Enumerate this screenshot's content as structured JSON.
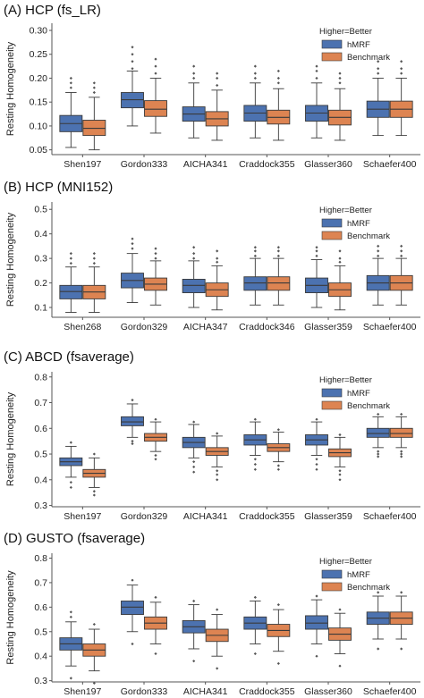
{
  "colors": {
    "hMRF": "#4c72b0",
    "Benchmark": "#dd8452",
    "whisker": "#3a3a3a",
    "axis": "#555555"
  },
  "chart_data": [
    {
      "type": "box",
      "title": "(A) HCP (fs_LR)",
      "ylabel": "Resting Homogeneity",
      "ylim": [
        0.04,
        0.315
      ],
      "yticks": [
        "0.05",
        "0.10",
        "0.15",
        "0.20",
        "0.25",
        "0.30"
      ],
      "legend": {
        "title": "Higher=Better",
        "items": [
          "hMRF",
          "Benchmark"
        ],
        "placement": "top-right"
      },
      "categories": [
        "Shen197",
        "Gordon333",
        "AICHA341",
        "Craddock355",
        "Glasser360",
        "Schaefer400"
      ],
      "series": [
        {
          "name": "hMRF",
          "boxes": [
            {
              "min": 0.055,
              "q1": 0.088,
              "median": 0.105,
              "q3": 0.122,
              "max": 0.17,
              "outliers": [
                0.18,
                0.19,
                0.2
              ]
            },
            {
              "min": 0.1,
              "q1": 0.138,
              "median": 0.155,
              "q3": 0.17,
              "max": 0.215,
              "outliers": [
                0.22,
                0.235,
                0.25,
                0.265
              ]
            },
            {
              "min": 0.075,
              "q1": 0.11,
              "median": 0.125,
              "q3": 0.14,
              "max": 0.19,
              "outliers": [
                0.2,
                0.21,
                0.225
              ]
            },
            {
              "min": 0.075,
              "q1": 0.11,
              "median": 0.127,
              "q3": 0.143,
              "max": 0.19,
              "outliers": [
                0.2,
                0.21,
                0.225
              ]
            },
            {
              "min": 0.075,
              "q1": 0.11,
              "median": 0.127,
              "q3": 0.143,
              "max": 0.19,
              "outliers": [
                0.2,
                0.215,
                0.225
              ]
            },
            {
              "min": 0.08,
              "q1": 0.118,
              "median": 0.135,
              "q3": 0.152,
              "max": 0.2,
              "outliers": [
                0.21,
                0.22,
                0.235
              ]
            }
          ]
        },
        {
          "name": "Benchmark",
          "boxes": [
            {
              "min": 0.05,
              "q1": 0.08,
              "median": 0.095,
              "q3": 0.112,
              "max": 0.16,
              "outliers": [
                0.17,
                0.18,
                0.19
              ]
            },
            {
              "min": 0.085,
              "q1": 0.12,
              "median": 0.135,
              "q3": 0.153,
              "max": 0.2,
              "outliers": [
                0.21,
                0.225,
                0.24
              ]
            },
            {
              "min": 0.07,
              "q1": 0.1,
              "median": 0.115,
              "q3": 0.13,
              "max": 0.175,
              "outliers": [
                0.185,
                0.2,
                0.21
              ]
            },
            {
              "min": 0.07,
              "q1": 0.104,
              "median": 0.118,
              "q3": 0.133,
              "max": 0.178,
              "outliers": [
                0.19,
                0.2,
                0.215
              ]
            },
            {
              "min": 0.07,
              "q1": 0.102,
              "median": 0.118,
              "q3": 0.133,
              "max": 0.178,
              "outliers": [
                0.19,
                0.2,
                0.21
              ]
            },
            {
              "min": 0.08,
              "q1": 0.118,
              "median": 0.135,
              "q3": 0.152,
              "max": 0.2,
              "outliers": [
                0.21,
                0.22,
                0.235
              ]
            }
          ]
        }
      ]
    },
    {
      "type": "box",
      "title": "(B) HCP (MNI152)",
      "ylabel": "Resting Homogeneity",
      "ylim": [
        0.06,
        0.53
      ],
      "yticks": [
        "0.1",
        "0.2",
        "0.3",
        "0.4",
        "0.5"
      ],
      "legend": {
        "title": "Higher=Better",
        "items": [
          "hMRF",
          "Benchmark"
        ],
        "placement": "top-right"
      },
      "categories": [
        "Shen268",
        "Gordon329",
        "AICHA347",
        "Craddock346",
        "Glasser359",
        "Schaefer400"
      ],
      "series": [
        {
          "name": "hMRF",
          "boxes": [
            {
              "min": 0.08,
              "q1": 0.135,
              "median": 0.165,
              "q3": 0.19,
              "max": 0.265,
              "outliers": [
                0.28,
                0.3,
                0.32
              ]
            },
            {
              "min": 0.12,
              "q1": 0.18,
              "median": 0.21,
              "q3": 0.24,
              "max": 0.32,
              "outliers": [
                0.34,
                0.36,
                0.38
              ]
            },
            {
              "min": 0.1,
              "q1": 0.16,
              "median": 0.19,
              "q3": 0.215,
              "max": 0.29,
              "outliers": [
                0.3,
                0.32,
                0.345
              ]
            },
            {
              "min": 0.11,
              "q1": 0.17,
              "median": 0.2,
              "q3": 0.225,
              "max": 0.3,
              "outliers": [
                0.31,
                0.33,
                0.345
              ]
            },
            {
              "min": 0.1,
              "q1": 0.16,
              "median": 0.19,
              "q3": 0.22,
              "max": 0.295,
              "outliers": [
                0.31,
                0.33,
                0.345
              ]
            },
            {
              "min": 0.11,
              "q1": 0.17,
              "median": 0.2,
              "q3": 0.23,
              "max": 0.3,
              "outliers": [
                0.31,
                0.33,
                0.35
              ]
            }
          ]
        },
        {
          "name": "Benchmark",
          "boxes": [
            {
              "min": 0.08,
              "q1": 0.135,
              "median": 0.163,
              "q3": 0.19,
              "max": 0.265,
              "outliers": [
                0.28,
                0.3,
                0.32
              ]
            },
            {
              "min": 0.11,
              "q1": 0.17,
              "median": 0.195,
              "q3": 0.22,
              "max": 0.29,
              "outliers": [
                0.3,
                0.32,
                0.34
              ]
            },
            {
              "min": 0.09,
              "q1": 0.145,
              "median": 0.172,
              "q3": 0.2,
              "max": 0.27,
              "outliers": [
                0.285,
                0.3,
                0.33
              ]
            },
            {
              "min": 0.11,
              "q1": 0.17,
              "median": 0.2,
              "q3": 0.225,
              "max": 0.3,
              "outliers": [
                0.31,
                0.33,
                0.345
              ]
            },
            {
              "min": 0.09,
              "q1": 0.145,
              "median": 0.172,
              "q3": 0.2,
              "max": 0.27,
              "outliers": [
                0.285,
                0.3,
                0.33
              ]
            },
            {
              "min": 0.11,
              "q1": 0.17,
              "median": 0.2,
              "q3": 0.23,
              "max": 0.3,
              "outliers": [
                0.31,
                0.33,
                0.35
              ]
            }
          ]
        }
      ]
    },
    {
      "type": "box",
      "title": "(C) ABCD (fsaverage)",
      "ylabel": "Resting Homogeneity",
      "ylim": [
        0.295,
        0.82
      ],
      "yticks": [
        "0.3",
        "0.4",
        "0.5",
        "0.6",
        "0.7",
        "0.8"
      ],
      "legend": {
        "title": "Higher=Better",
        "items": [
          "hMRF",
          "Benchmark"
        ],
        "placement": "top-right"
      },
      "categories": [
        "Shen197",
        "Gordon329",
        "AICHA341",
        "Craddock355",
        "Glasser359",
        "Schaefer400"
      ],
      "series": [
        {
          "name": "hMRF",
          "boxes": [
            {
              "min": 0.41,
              "q1": 0.455,
              "median": 0.47,
              "q3": 0.485,
              "max": 0.53,
              "outliers": [
                0.39,
                0.37,
                0.545
              ]
            },
            {
              "min": 0.565,
              "q1": 0.61,
              "median": 0.625,
              "q3": 0.645,
              "max": 0.695,
              "outliers": [
                0.55,
                0.54,
                0.71
              ]
            },
            {
              "min": 0.485,
              "q1": 0.525,
              "median": 0.545,
              "q3": 0.565,
              "max": 0.615,
              "outliers": [
                0.47,
                0.45,
                0.43,
                0.625
              ]
            },
            {
              "min": 0.495,
              "q1": 0.535,
              "median": 0.555,
              "q3": 0.575,
              "max": 0.625,
              "outliers": [
                0.48,
                0.46,
                0.44,
                0.635
              ]
            },
            {
              "min": 0.495,
              "q1": 0.535,
              "median": 0.555,
              "q3": 0.575,
              "max": 0.625,
              "outliers": [
                0.48,
                0.46,
                0.44,
                0.635
              ]
            },
            {
              "min": 0.525,
              "q1": 0.565,
              "median": 0.58,
              "q3": 0.6,
              "max": 0.645,
              "outliers": [
                0.51,
                0.5,
                0.49,
                0.655
              ]
            }
          ]
        },
        {
          "name": "Benchmark",
          "boxes": [
            {
              "min": 0.37,
              "q1": 0.41,
              "median": 0.425,
              "q3": 0.44,
              "max": 0.485,
              "outliers": [
                0.355,
                0.34,
                0.5
              ]
            },
            {
              "min": 0.51,
              "q1": 0.55,
              "median": 0.565,
              "q3": 0.58,
              "max": 0.625,
              "outliers": [
                0.495,
                0.48,
                0.635
              ]
            },
            {
              "min": 0.45,
              "q1": 0.495,
              "median": 0.51,
              "q3": 0.525,
              "max": 0.57,
              "outliers": [
                0.435,
                0.42,
                0.4,
                0.58
              ]
            },
            {
              "min": 0.47,
              "q1": 0.51,
              "median": 0.525,
              "q3": 0.54,
              "max": 0.585,
              "outliers": [
                0.455,
                0.44,
                0.595
              ]
            },
            {
              "min": 0.45,
              "q1": 0.49,
              "median": 0.505,
              "q3": 0.52,
              "max": 0.565,
              "outliers": [
                0.435,
                0.42,
                0.4,
                0.575
              ]
            },
            {
              "min": 0.525,
              "q1": 0.565,
              "median": 0.58,
              "q3": 0.6,
              "max": 0.645,
              "outliers": [
                0.51,
                0.5,
                0.49,
                0.655
              ]
            }
          ]
        }
      ]
    },
    {
      "type": "box",
      "title": "(D) GUSTO (fsaverage)",
      "ylabel": "Resting Homogeneity",
      "ylim": [
        0.295,
        0.82
      ],
      "yticks": [
        "0.3",
        "0.4",
        "0.5",
        "0.6",
        "0.7",
        "0.8"
      ],
      "legend": {
        "title": "Higher=Better",
        "items": [
          "hMRF",
          "Benchmark"
        ],
        "placement": "top-right"
      },
      "categories": [
        "Shen197",
        "Gordon333",
        "AICHA341",
        "Craddock355",
        "Glasser360",
        "Schaefer400"
      ],
      "series": [
        {
          "name": "hMRF",
          "boxes": [
            {
              "min": 0.36,
              "q1": 0.425,
              "median": 0.45,
              "q3": 0.475,
              "max": 0.54,
              "outliers": [
                0.56,
                0.58,
                0.31
              ]
            },
            {
              "min": 0.5,
              "q1": 0.57,
              "median": 0.6,
              "q3": 0.625,
              "max": 0.69,
              "outliers": [
                0.71,
                0.45
              ]
            },
            {
              "min": 0.43,
              "q1": 0.495,
              "median": 0.52,
              "q3": 0.545,
              "max": 0.61,
              "outliers": [
                0.625,
                0.38
              ]
            },
            {
              "min": 0.45,
              "q1": 0.51,
              "median": 0.535,
              "q3": 0.56,
              "max": 0.625,
              "outliers": [
                0.64,
                0.41
              ]
            },
            {
              "min": 0.45,
              "q1": 0.51,
              "median": 0.535,
              "q3": 0.565,
              "max": 0.63,
              "outliers": [
                0.645,
                0.4
              ]
            },
            {
              "min": 0.47,
              "q1": 0.53,
              "median": 0.555,
              "q3": 0.58,
              "max": 0.645,
              "outliers": [
                0.66,
                0.43
              ]
            }
          ]
        },
        {
          "name": "Benchmark",
          "boxes": [
            {
              "min": 0.34,
              "q1": 0.4,
              "median": 0.425,
              "q3": 0.45,
              "max": 0.51,
              "outliers": [
                0.53,
                0.29
              ]
            },
            {
              "min": 0.45,
              "q1": 0.51,
              "median": 0.535,
              "q3": 0.56,
              "max": 0.62,
              "outliers": [
                0.64,
                0.41
              ]
            },
            {
              "min": 0.4,
              "q1": 0.46,
              "median": 0.485,
              "q3": 0.51,
              "max": 0.57,
              "outliers": [
                0.59,
                0.35
              ]
            },
            {
              "min": 0.42,
              "q1": 0.48,
              "median": 0.505,
              "q3": 0.53,
              "max": 0.59,
              "outliers": [
                0.61,
                0.37
              ]
            },
            {
              "min": 0.41,
              "q1": 0.465,
              "median": 0.49,
              "q3": 0.515,
              "max": 0.575,
              "outliers": [
                0.59,
                0.36
              ]
            },
            {
              "min": 0.47,
              "q1": 0.53,
              "median": 0.555,
              "q3": 0.58,
              "max": 0.645,
              "outliers": [
                0.66,
                0.43
              ]
            }
          ]
        }
      ]
    }
  ]
}
